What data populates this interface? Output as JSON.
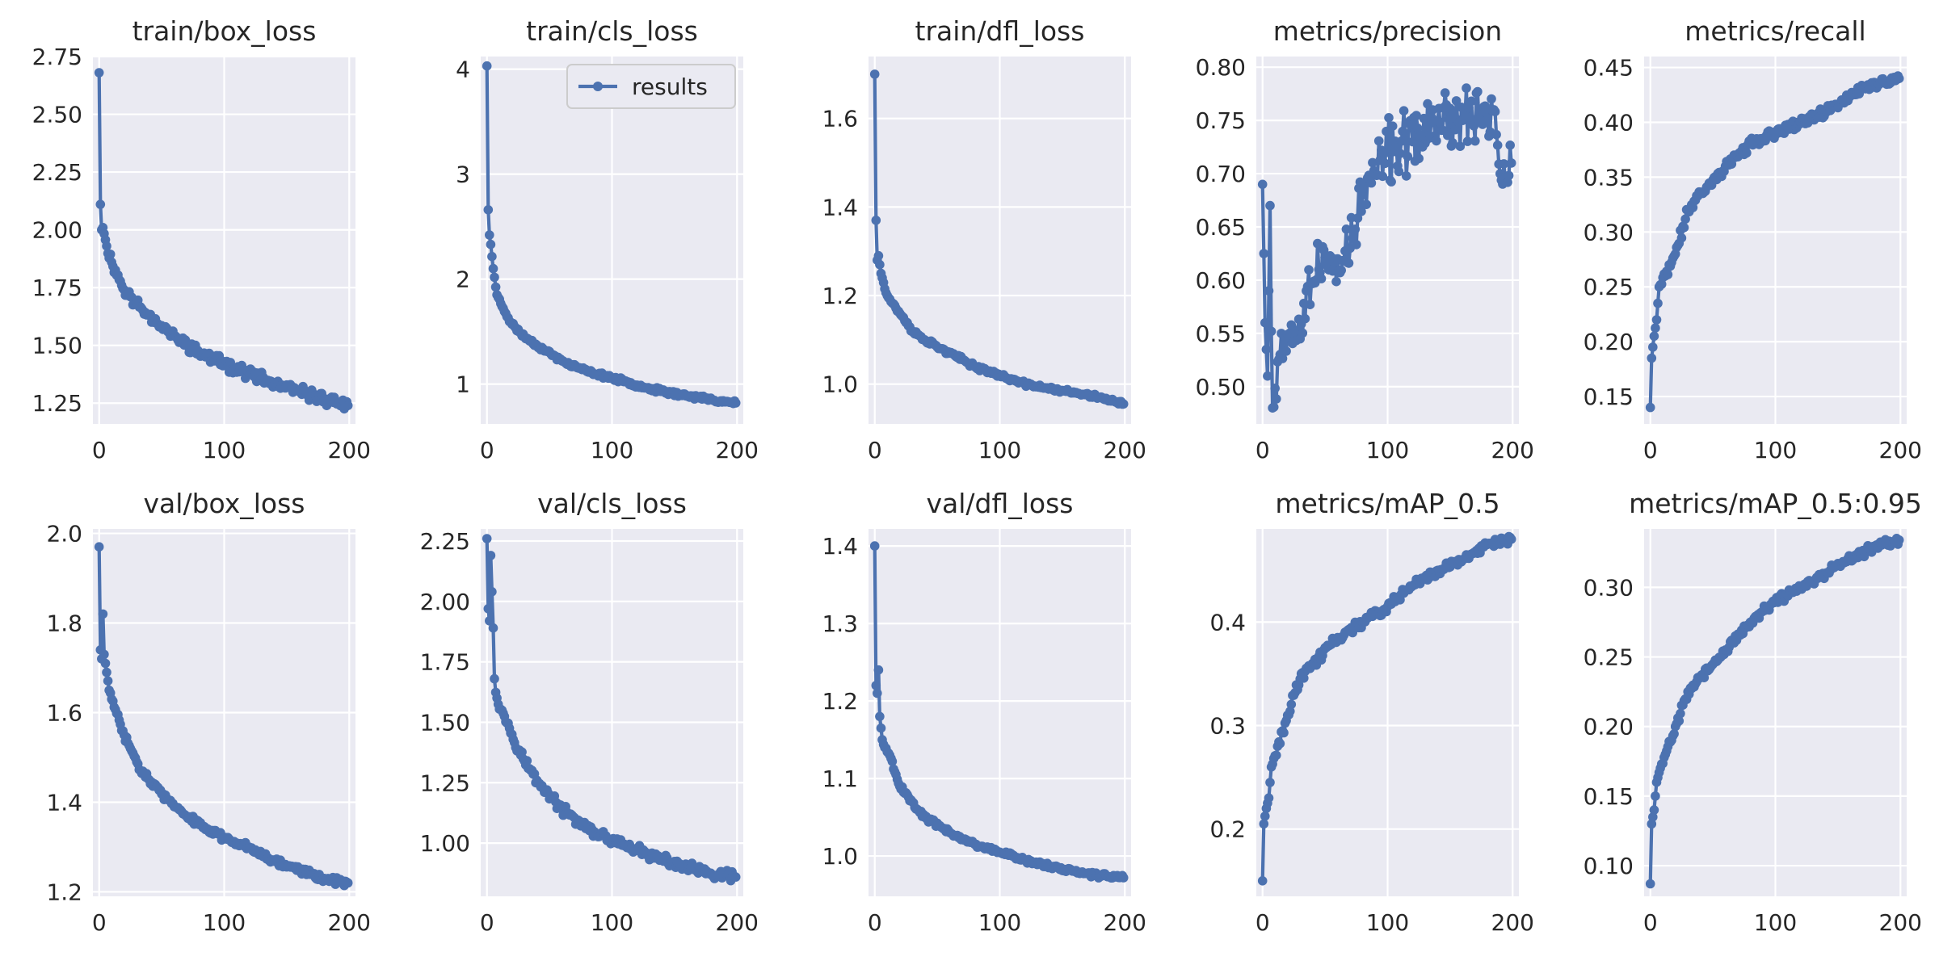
{
  "chart_data": [
    {
      "type": "line",
      "title": "train/box_loss",
      "xlabel": "",
      "ylabel": "",
      "xlim": [
        -5,
        205
      ],
      "ylim": [
        1.16,
        2.75
      ],
      "xticks": [
        0,
        100,
        200
      ],
      "yticks": [
        1.25,
        1.5,
        1.75,
        2.0,
        2.25,
        2.5,
        2.75
      ],
      "ytick_labels": [
        "1.25",
        "1.50",
        "1.75",
        "2.00",
        "2.25",
        "2.50",
        "2.75"
      ],
      "series": [
        {
          "name": "results",
          "anchors": [
            [
              0,
              2.68
            ],
            [
              1,
              2.11
            ],
            [
              2,
              2.0
            ],
            [
              3,
              2.01
            ],
            [
              6,
              1.93
            ],
            [
              10,
              1.86
            ],
            [
              20,
              1.74
            ],
            [
              30,
              1.68
            ],
            [
              40,
              1.63
            ],
            [
              60,
              1.54
            ],
            [
              80,
              1.47
            ],
            [
              100,
              1.42
            ],
            [
              120,
              1.38
            ],
            [
              140,
              1.33
            ],
            [
              160,
              1.3
            ],
            [
              180,
              1.27
            ],
            [
              199,
              1.24
            ]
          ],
          "noise": 0.03,
          "seed": 11
        }
      ]
    },
    {
      "type": "line",
      "title": "train/cls_loss",
      "xlabel": "",
      "ylabel": "",
      "xlim": [
        -5,
        205
      ],
      "ylim": [
        0.62,
        4.12
      ],
      "xticks": [
        0,
        100,
        200
      ],
      "yticks": [
        1,
        2,
        3,
        4
      ],
      "ytick_labels": [
        "1",
        "2",
        "3",
        "4"
      ],
      "legend": {
        "label": "results",
        "position": "top-right"
      },
      "series": [
        {
          "name": "results",
          "anchors": [
            [
              0,
              4.03
            ],
            [
              1,
              2.66
            ],
            [
              2,
              2.42
            ],
            [
              3,
              2.33
            ],
            [
              5,
              2.1
            ],
            [
              8,
              1.85
            ],
            [
              12,
              1.74
            ],
            [
              20,
              1.57
            ],
            [
              30,
              1.45
            ],
            [
              40,
              1.37
            ],
            [
              60,
              1.22
            ],
            [
              80,
              1.12
            ],
            [
              100,
              1.06
            ],
            [
              120,
              0.99
            ],
            [
              140,
              0.93
            ],
            [
              160,
              0.89
            ],
            [
              180,
              0.85
            ],
            [
              199,
              0.82
            ]
          ],
          "noise": 0.025,
          "seed": 23
        }
      ]
    },
    {
      "type": "line",
      "title": "train/dfl_loss",
      "xlabel": "",
      "ylabel": "",
      "xlim": [
        -5,
        205
      ],
      "ylim": [
        0.91,
        1.74
      ],
      "xticks": [
        0,
        100,
        200
      ],
      "yticks": [
        1.0,
        1.2,
        1.4,
        1.6
      ],
      "ytick_labels": [
        "1.0",
        "1.2",
        "1.4",
        "1.6"
      ],
      "series": [
        {
          "name": "results",
          "anchors": [
            [
              0,
              1.7
            ],
            [
              1,
              1.37
            ],
            [
              2,
              1.28
            ],
            [
              3,
              1.29
            ],
            [
              5,
              1.25
            ],
            [
              10,
              1.2
            ],
            [
              20,
              1.16
            ],
            [
              30,
              1.12
            ],
            [
              40,
              1.1
            ],
            [
              60,
              1.07
            ],
            [
              80,
              1.04
            ],
            [
              100,
              1.02
            ],
            [
              120,
              1.0
            ],
            [
              140,
              0.99
            ],
            [
              160,
              0.98
            ],
            [
              180,
              0.97
            ],
            [
              199,
              0.955
            ]
          ],
          "noise": 0.006,
          "seed": 37
        }
      ]
    },
    {
      "type": "line",
      "title": "metrics/precision",
      "xlabel": "",
      "ylabel": "",
      "xlim": [
        -5,
        205
      ],
      "ylim": [
        0.465,
        0.81
      ],
      "xticks": [
        0,
        100,
        200
      ],
      "yticks": [
        0.5,
        0.55,
        0.6,
        0.65,
        0.7,
        0.75,
        0.8
      ],
      "ytick_labels": [
        "0.50",
        "0.55",
        "0.60",
        "0.65",
        "0.70",
        "0.75",
        "0.80"
      ],
      "series": [
        {
          "name": "results",
          "anchors": [
            [
              0,
              0.69
            ],
            [
              2,
              0.56
            ],
            [
              4,
              0.51
            ],
            [
              6,
              0.67
            ],
            [
              8,
              0.48
            ],
            [
              15,
              0.55
            ],
            [
              25,
              0.55
            ],
            [
              35,
              0.59
            ],
            [
              45,
              0.61
            ],
            [
              60,
              0.62
            ],
            [
              70,
              0.63
            ],
            [
              80,
              0.68
            ],
            [
              90,
              0.7
            ],
            [
              100,
              0.72
            ],
            [
              120,
              0.73
            ],
            [
              140,
              0.75
            ],
            [
              160,
              0.75
            ],
            [
              175,
              0.76
            ],
            [
              185,
              0.76
            ],
            [
              190,
              0.7
            ],
            [
              199,
              0.71
            ]
          ],
          "noise": 0.035,
          "seed": 53
        }
      ]
    },
    {
      "type": "line",
      "title": "metrics/recall",
      "xlabel": "",
      "ylabel": "",
      "xlim": [
        -5,
        205
      ],
      "ylim": [
        0.125,
        0.46
      ],
      "xticks": [
        0,
        100,
        200
      ],
      "yticks": [
        0.15,
        0.2,
        0.25,
        0.3,
        0.35,
        0.4,
        0.45
      ],
      "ytick_labels": [
        "0.15",
        "0.20",
        "0.25",
        "0.30",
        "0.35",
        "0.40",
        "0.45"
      ],
      "series": [
        {
          "name": "results",
          "anchors": [
            [
              0,
              0.14
            ],
            [
              1,
              0.185
            ],
            [
              3,
              0.205
            ],
            [
              5,
              0.22
            ],
            [
              7,
              0.25
            ],
            [
              12,
              0.26
            ],
            [
              20,
              0.28
            ],
            [
              30,
              0.32
            ],
            [
              40,
              0.335
            ],
            [
              60,
              0.36
            ],
            [
              80,
              0.38
            ],
            [
              100,
              0.39
            ],
            [
              120,
              0.4
            ],
            [
              140,
              0.41
            ],
            [
              160,
              0.425
            ],
            [
              180,
              0.435
            ],
            [
              199,
              0.44
            ]
          ],
          "noise": 0.006,
          "seed": 71
        }
      ]
    },
    {
      "type": "line",
      "title": "val/box_loss",
      "xlabel": "",
      "ylabel": "",
      "xlim": [
        -5,
        205
      ],
      "ylim": [
        1.19,
        2.01
      ],
      "xticks": [
        0,
        100,
        200
      ],
      "yticks": [
        1.2,
        1.4,
        1.6,
        1.8,
        2.0
      ],
      "ytick_labels": [
        "1.2",
        "1.4",
        "1.6",
        "1.8",
        "2.0"
      ],
      "series": [
        {
          "name": "results",
          "anchors": [
            [
              0,
              1.97
            ],
            [
              1,
              1.74
            ],
            [
              2,
              1.72
            ],
            [
              3,
              1.82
            ],
            [
              4,
              1.73
            ],
            [
              6,
              1.69
            ],
            [
              8,
              1.65
            ],
            [
              10,
              1.63
            ],
            [
              20,
              1.55
            ],
            [
              30,
              1.49
            ],
            [
              40,
              1.45
            ],
            [
              60,
              1.39
            ],
            [
              80,
              1.35
            ],
            [
              100,
              1.32
            ],
            [
              120,
              1.3
            ],
            [
              140,
              1.27
            ],
            [
              160,
              1.25
            ],
            [
              180,
              1.23
            ],
            [
              199,
              1.22
            ]
          ],
          "noise": 0.01,
          "seed": 83
        }
      ]
    },
    {
      "type": "line",
      "title": "val/cls_loss",
      "xlabel": "",
      "ylabel": "",
      "xlim": [
        -5,
        205
      ],
      "ylim": [
        0.78,
        2.3
      ],
      "xticks": [
        0,
        100,
        200
      ],
      "yticks": [
        1.0,
        1.25,
        1.5,
        1.75,
        2.0,
        2.25
      ],
      "ytick_labels": [
        "1.00",
        "1.25",
        "1.50",
        "1.75",
        "2.00",
        "2.25"
      ],
      "series": [
        {
          "name": "results",
          "anchors": [
            [
              0,
              2.26
            ],
            [
              1,
              1.97
            ],
            [
              2,
              1.92
            ],
            [
              3,
              2.19
            ],
            [
              5,
              1.89
            ],
            [
              6,
              1.68
            ],
            [
              8,
              1.6
            ],
            [
              12,
              1.55
            ],
            [
              20,
              1.45
            ],
            [
              30,
              1.34
            ],
            [
              40,
              1.26
            ],
            [
              60,
              1.14
            ],
            [
              80,
              1.06
            ],
            [
              100,
              1.01
            ],
            [
              120,
              0.97
            ],
            [
              140,
              0.93
            ],
            [
              160,
              0.9
            ],
            [
              180,
              0.87
            ],
            [
              199,
              0.86
            ]
          ],
          "noise": 0.025,
          "seed": 97
        }
      ]
    },
    {
      "type": "line",
      "title": "val/dfl_loss",
      "xlabel": "",
      "ylabel": "",
      "xlim": [
        -5,
        205
      ],
      "ylim": [
        0.948,
        1.422
      ],
      "xticks": [
        0,
        100,
        200
      ],
      "yticks": [
        1.0,
        1.1,
        1.2,
        1.3,
        1.4
      ],
      "ytick_labels": [
        "1.0",
        "1.1",
        "1.2",
        "1.3",
        "1.4"
      ],
      "series": [
        {
          "name": "results",
          "anchors": [
            [
              0,
              1.4
            ],
            [
              1,
              1.22
            ],
            [
              2,
              1.21
            ],
            [
              3,
              1.24
            ],
            [
              4,
              1.18
            ],
            [
              6,
              1.15
            ],
            [
              8,
              1.14
            ],
            [
              12,
              1.13
            ],
            [
              20,
              1.09
            ],
            [
              30,
              1.07
            ],
            [
              40,
              1.05
            ],
            [
              60,
              1.03
            ],
            [
              80,
              1.015
            ],
            [
              100,
              1.005
            ],
            [
              120,
              0.995
            ],
            [
              140,
              0.987
            ],
            [
              160,
              0.98
            ],
            [
              180,
              0.975
            ],
            [
              199,
              0.972
            ]
          ],
          "noise": 0.004,
          "seed": 101
        }
      ]
    },
    {
      "type": "line",
      "title": "metrics/mAP_0.5",
      "xlabel": "",
      "ylabel": "",
      "xlim": [
        -5,
        205
      ],
      "ylim": [
        0.135,
        0.49
      ],
      "xticks": [
        0,
        100,
        200
      ],
      "yticks": [
        0.2,
        0.3,
        0.4
      ],
      "ytick_labels": [
        "0.2",
        "0.3",
        "0.4"
      ],
      "series": [
        {
          "name": "results",
          "anchors": [
            [
              0,
              0.15
            ],
            [
              1,
              0.205
            ],
            [
              3,
              0.22
            ],
            [
              5,
              0.23
            ],
            [
              7,
              0.26
            ],
            [
              12,
              0.28
            ],
            [
              20,
              0.31
            ],
            [
              30,
              0.345
            ],
            [
              40,
              0.36
            ],
            [
              60,
              0.385
            ],
            [
              80,
              0.4
            ],
            [
              100,
              0.415
            ],
            [
              120,
              0.435
            ],
            [
              140,
              0.45
            ],
            [
              160,
              0.46
            ],
            [
              180,
              0.475
            ],
            [
              199,
              0.48
            ]
          ],
          "noise": 0.006,
          "seed": 113
        }
      ]
    },
    {
      "type": "line",
      "title": "metrics/mAP_0.5:0.95",
      "xlabel": "",
      "ylabel": "",
      "xlim": [
        -5,
        205
      ],
      "ylim": [
        0.078,
        0.342
      ],
      "xticks": [
        0,
        100,
        200
      ],
      "yticks": [
        0.1,
        0.15,
        0.2,
        0.25,
        0.3
      ],
      "ytick_labels": [
        "0.10",
        "0.15",
        "0.20",
        "0.25",
        "0.30"
      ],
      "series": [
        {
          "name": "results",
          "anchors": [
            [
              0,
              0.087
            ],
            [
              1,
              0.13
            ],
            [
              3,
              0.14
            ],
            [
              5,
              0.16
            ],
            [
              8,
              0.17
            ],
            [
              12,
              0.18
            ],
            [
              20,
              0.2
            ],
            [
              30,
              0.225
            ],
            [
              40,
              0.235
            ],
            [
              60,
              0.255
            ],
            [
              80,
              0.275
            ],
            [
              100,
              0.29
            ],
            [
              120,
              0.3
            ],
            [
              140,
              0.31
            ],
            [
              160,
              0.32
            ],
            [
              180,
              0.33
            ],
            [
              199,
              0.334
            ]
          ],
          "noise": 0.004,
          "seed": 127
        }
      ]
    }
  ]
}
